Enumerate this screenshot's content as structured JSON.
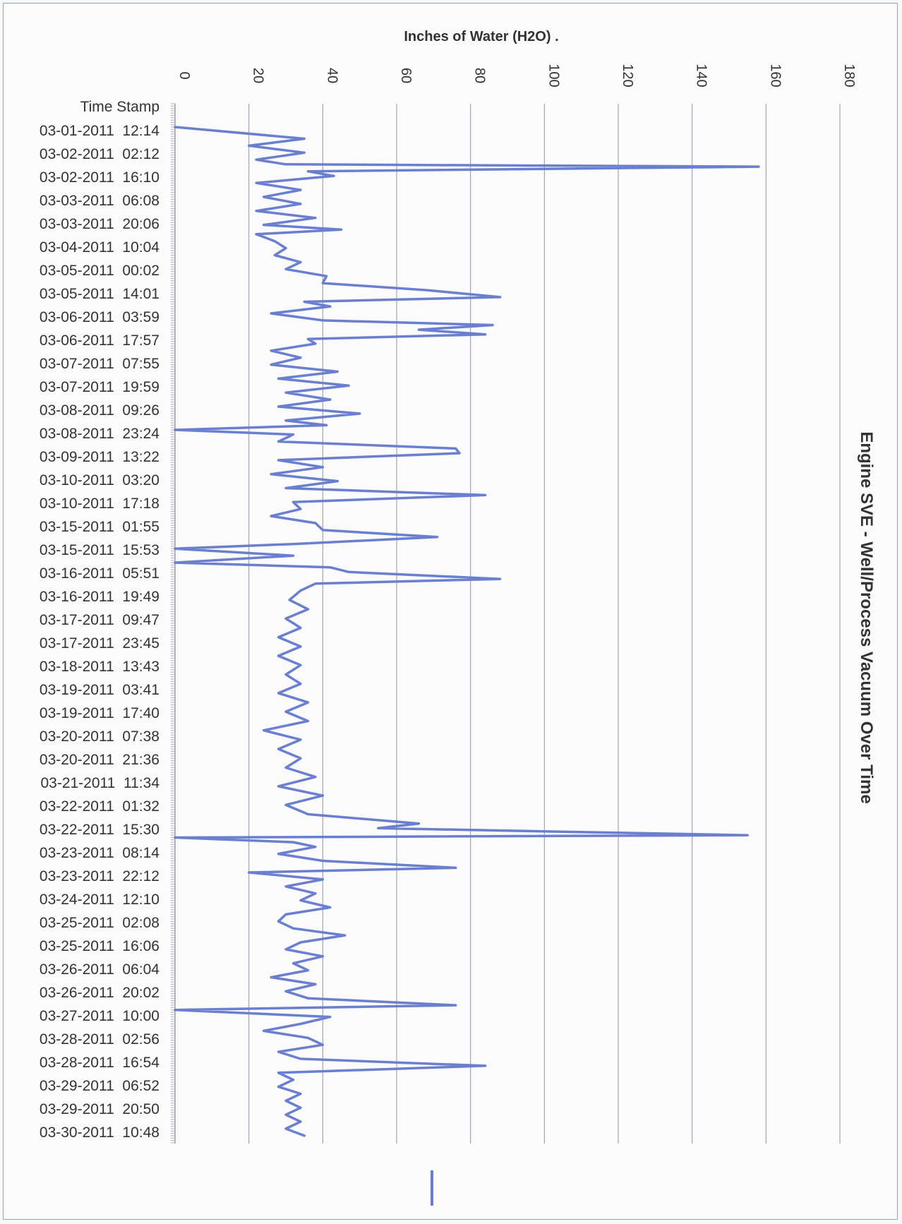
{
  "chart_data": {
    "type": "line",
    "title": "Engine SVE - Well/Process Vacuum Over Time",
    "ylabel": "Inches of Water (H2O) .",
    "xlabel": "",
    "ylim": [
      0,
      180
    ],
    "yticks": [
      0,
      20,
      40,
      60,
      80,
      100,
      120,
      140,
      160,
      180
    ],
    "grid": true,
    "orientation": "rotated-90",
    "header_label": "Time Stamp",
    "categories": [
      "03-01-2011  12:14",
      "03-02-2011  02:12",
      "03-02-2011  16:10",
      "03-03-2011  06:08",
      "03-03-2011  20:06",
      "03-04-2011  10:04",
      "03-05-2011  00:02",
      "03-05-2011  14:01",
      "03-06-2011  03:59",
      "03-06-2011  17:57",
      "03-07-2011  07:55",
      "03-07-2011  19:59",
      "03-08-2011  09:26",
      "03-08-2011  23:24",
      "03-09-2011  13:22",
      "03-10-2011  03:20",
      "03-10-2011  17:18",
      "03-15-2011  01:55",
      "03-15-2011  15:53",
      "03-16-2011  05:51",
      "03-16-2011  19:49",
      "03-17-2011  09:47",
      "03-17-2011  23:45",
      "03-18-2011  13:43",
      "03-19-2011  03:41",
      "03-19-2011  17:40",
      "03-20-2011  07:38",
      "03-20-2011  21:36",
      "03-21-2011  11:34",
      "03-22-2011  01:32",
      "03-22-2011  15:30",
      "03-23-2011  08:14",
      "03-23-2011  22:12",
      "03-24-2011  12:10",
      "03-25-2011  02:08",
      "03-25-2011  16:06",
      "03-26-2011  06:04",
      "03-26-2011  20:02",
      "03-27-2011  10:00",
      "03-28-2011  02:56",
      "03-28-2011  16:54",
      "03-29-2011  06:52",
      "03-29-2011  20:50",
      "03-30-2011  10:48"
    ],
    "series": [
      {
        "color": "#6b7fd0",
        "points": [
          [
            0,
            0
          ],
          [
            0.5,
            35
          ],
          [
            0.8,
            20
          ],
          [
            1.1,
            35
          ],
          [
            1.4,
            22
          ],
          [
            1.6,
            30
          ],
          [
            1.7,
            158
          ],
          [
            1.9,
            36
          ],
          [
            2.1,
            43
          ],
          [
            2.4,
            22
          ],
          [
            2.7,
            34
          ],
          [
            3.0,
            24
          ],
          [
            3.3,
            34
          ],
          [
            3.6,
            22
          ],
          [
            3.9,
            38
          ],
          [
            4.2,
            24
          ],
          [
            4.4,
            45
          ],
          [
            4.6,
            22
          ],
          [
            4.9,
            27
          ],
          [
            5.2,
            30
          ],
          [
            5.5,
            27
          ],
          [
            5.8,
            34
          ],
          [
            6.1,
            30
          ],
          [
            6.4,
            41
          ],
          [
            6.7,
            40
          ],
          [
            7.0,
            68
          ],
          [
            7.3,
            88
          ],
          [
            7.5,
            35
          ],
          [
            7.7,
            42
          ],
          [
            8.0,
            26
          ],
          [
            8.3,
            40
          ],
          [
            8.5,
            86
          ],
          [
            8.7,
            66
          ],
          [
            8.9,
            84
          ],
          [
            9.1,
            36
          ],
          [
            9.3,
            38
          ],
          [
            9.6,
            26
          ],
          [
            9.9,
            34
          ],
          [
            10.2,
            26
          ],
          [
            10.5,
            44
          ],
          [
            10.8,
            28
          ],
          [
            11.1,
            47
          ],
          [
            11.4,
            30
          ],
          [
            11.7,
            42
          ],
          [
            12.0,
            28
          ],
          [
            12.3,
            50
          ],
          [
            12.6,
            30
          ],
          [
            12.8,
            41
          ],
          [
            13.0,
            0
          ],
          [
            13.2,
            32
          ],
          [
            13.5,
            28
          ],
          [
            13.8,
            76
          ],
          [
            14.0,
            77
          ],
          [
            14.3,
            28
          ],
          [
            14.6,
            40
          ],
          [
            14.9,
            26
          ],
          [
            15.2,
            44
          ],
          [
            15.5,
            30
          ],
          [
            15.8,
            84
          ],
          [
            16.1,
            32
          ],
          [
            16.4,
            34
          ],
          [
            16.7,
            26
          ],
          [
            17.0,
            38
          ],
          [
            17.3,
            40
          ],
          [
            17.6,
            71
          ],
          [
            17.9,
            32
          ],
          [
            18.1,
            0
          ],
          [
            18.4,
            32
          ],
          [
            18.7,
            0
          ],
          [
            18.9,
            42
          ],
          [
            19.1,
            47
          ],
          [
            19.4,
            88
          ],
          [
            19.6,
            38
          ],
          [
            19.9,
            34
          ],
          [
            20.3,
            31
          ],
          [
            20.7,
            36
          ],
          [
            21.1,
            30
          ],
          [
            21.5,
            34
          ],
          [
            21.9,
            28
          ],
          [
            22.3,
            34
          ],
          [
            22.7,
            28
          ],
          [
            23.1,
            34
          ],
          [
            23.5,
            30
          ],
          [
            23.9,
            34
          ],
          [
            24.3,
            28
          ],
          [
            24.7,
            36
          ],
          [
            25.1,
            30
          ],
          [
            25.5,
            36
          ],
          [
            25.9,
            24
          ],
          [
            26.3,
            34
          ],
          [
            26.7,
            28
          ],
          [
            27.1,
            34
          ],
          [
            27.5,
            30
          ],
          [
            27.9,
            38
          ],
          [
            28.3,
            28
          ],
          [
            28.7,
            40
          ],
          [
            29.1,
            30
          ],
          [
            29.5,
            36
          ],
          [
            29.9,
            66
          ],
          [
            30.1,
            55
          ],
          [
            30.4,
            155
          ],
          [
            30.5,
            0
          ],
          [
            30.7,
            32
          ],
          [
            30.9,
            38
          ],
          [
            31.2,
            28
          ],
          [
            31.5,
            40
          ],
          [
            31.8,
            76
          ],
          [
            32.0,
            20
          ],
          [
            32.3,
            40
          ],
          [
            32.6,
            30
          ],
          [
            32.9,
            38
          ],
          [
            33.2,
            34
          ],
          [
            33.5,
            42
          ],
          [
            33.8,
            30
          ],
          [
            34.1,
            28
          ],
          [
            34.4,
            32
          ],
          [
            34.7,
            46
          ],
          [
            35.0,
            34
          ],
          [
            35.3,
            30
          ],
          [
            35.6,
            40
          ],
          [
            35.9,
            32
          ],
          [
            36.2,
            36
          ],
          [
            36.5,
            26
          ],
          [
            36.8,
            38
          ],
          [
            37.1,
            30
          ],
          [
            37.4,
            36
          ],
          [
            37.7,
            76
          ],
          [
            37.9,
            0
          ],
          [
            38.2,
            42
          ],
          [
            38.5,
            34
          ],
          [
            38.8,
            24
          ],
          [
            39.1,
            36
          ],
          [
            39.4,
            40
          ],
          [
            39.7,
            28
          ],
          [
            40.0,
            34
          ],
          [
            40.3,
            84
          ],
          [
            40.6,
            28
          ],
          [
            40.9,
            32
          ],
          [
            41.2,
            28
          ],
          [
            41.5,
            34
          ],
          [
            41.8,
            30
          ],
          [
            42.1,
            34
          ],
          [
            42.4,
            30
          ],
          [
            42.7,
            34
          ],
          [
            43.0,
            30
          ],
          [
            43.3,
            35
          ]
        ]
      }
    ],
    "legend": {
      "position": "bottom",
      "color": "#6b7fd0"
    }
  }
}
